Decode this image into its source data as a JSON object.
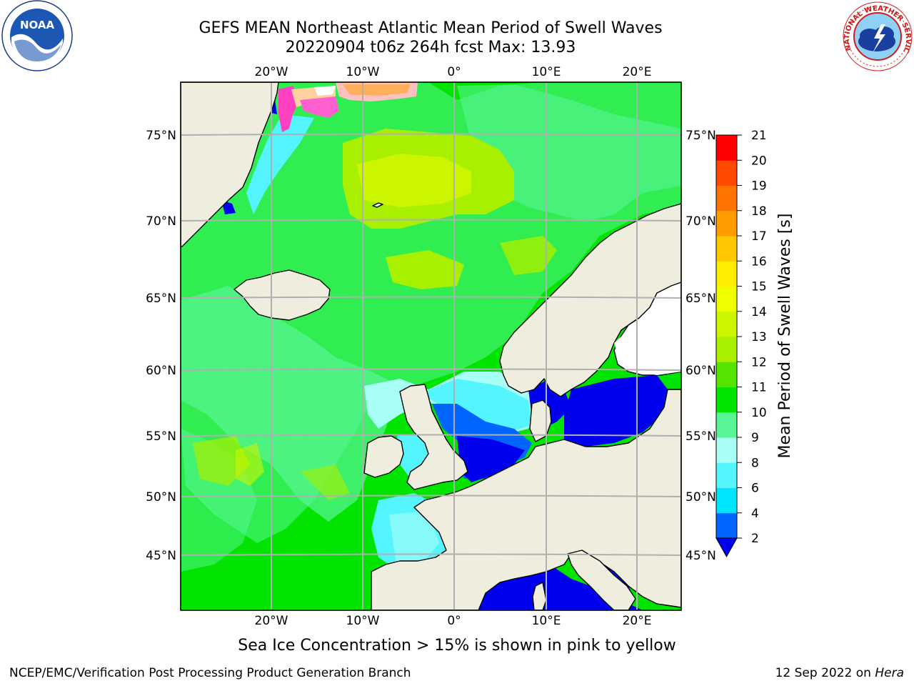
{
  "title": {
    "line1": "GEFS MEAN Northeast Atlantic Mean Period of Swell Waves",
    "line2": "20220904 t06z 264h fcst   Max: 13.93"
  },
  "logos": {
    "left": {
      "name": "noaa-logo",
      "text": "NOAA"
    },
    "right": {
      "name": "nws-logo",
      "text": "NATIONAL WEATHER SERVICE"
    }
  },
  "map": {
    "lon_labels": [
      "20°W",
      "10°W",
      "0°",
      "10°E",
      "20°E"
    ],
    "lat_labels": [
      "75°N",
      "70°N",
      "65°N",
      "60°N",
      "55°N",
      "50°N",
      "45°N"
    ],
    "land_color": "#efedde",
    "ocean_main_color": "#00ee00",
    "grid_color": "#b0b0b0"
  },
  "colorbar": {
    "label": "Mean Period of Swell Waves [s]",
    "ticks": [
      "2",
      "4",
      "6",
      "8",
      "9",
      "10",
      "11",
      "12",
      "13",
      "14",
      "15",
      "16",
      "17",
      "18",
      "19",
      "20",
      "21"
    ],
    "colors": [
      "#0064ff",
      "#00e5ff",
      "#55f5ff",
      "#a8fff5",
      "#58f596",
      "#00e400",
      "#55e400",
      "#a8f000",
      "#ccf500",
      "#eeff00",
      "#ffee00",
      "#ffc800",
      "#ff9d00",
      "#ff7300",
      "#ff4a00",
      "#ff0000"
    ],
    "under_color": "#0000ee"
  },
  "footer": {
    "note": "Sea Ice Concentration > 15% is shown in pink to yellow",
    "credit": "NCEP/EMC/Verification Post Processing Product Generation Branch",
    "date": "12 Sep 2022 on",
    "host": "Hera"
  }
}
